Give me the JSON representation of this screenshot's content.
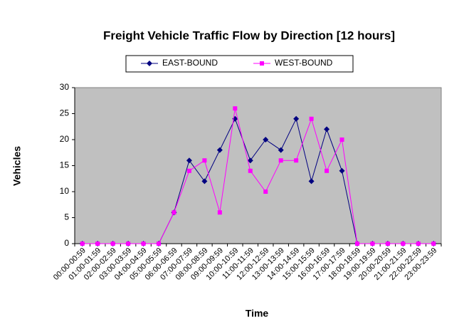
{
  "chart_data": {
    "type": "line",
    "title": "Freight Vehicle Traffic Flow by Direction [12 hours]",
    "x_label": "Time",
    "y_label": "Vehicles",
    "categories": [
      "00:00-00:59",
      "01:00-01:59",
      "02:00-02:59",
      "03:00-03:59",
      "04:00-04:59",
      "05:00-05:59",
      "06:00-06:59",
      "07:00-07:59",
      "08:00-08:59",
      "09:00-09:59",
      "10:00-10:59",
      "11:00-11:59",
      "12:00-12:59",
      "13:00-13:59",
      "14:00-14:59",
      "15:00-15:59",
      "16:00-16:59",
      "17:00-17:59",
      "18:00-18:59",
      "19:00-19:59",
      "20:00-20:59",
      "21:00-21:59",
      "22:00-22:59",
      "23:00-23:59"
    ],
    "series": [
      {
        "name": "EAST-BOUND",
        "color": "#000080",
        "marker": "diamond",
        "values": [
          0,
          0,
          0,
          0,
          0,
          0,
          6,
          16,
          12,
          18,
          24,
          16,
          20,
          18,
          24,
          12,
          22,
          14,
          0,
          0,
          0,
          0,
          0,
          0
        ]
      },
      {
        "name": "WEST-BOUND",
        "color": "#ff00ff",
        "marker": "square",
        "values": [
          0,
          0,
          0,
          0,
          0,
          0,
          6,
          14,
          16,
          6,
          26,
          14,
          10,
          16,
          16,
          24,
          14,
          20,
          0,
          0,
          0,
          0,
          0,
          0
        ]
      }
    ],
    "ylim": [
      0,
      30
    ],
    "yticks": [
      0,
      5,
      10,
      15,
      20,
      25,
      30
    ],
    "legend": "top"
  }
}
